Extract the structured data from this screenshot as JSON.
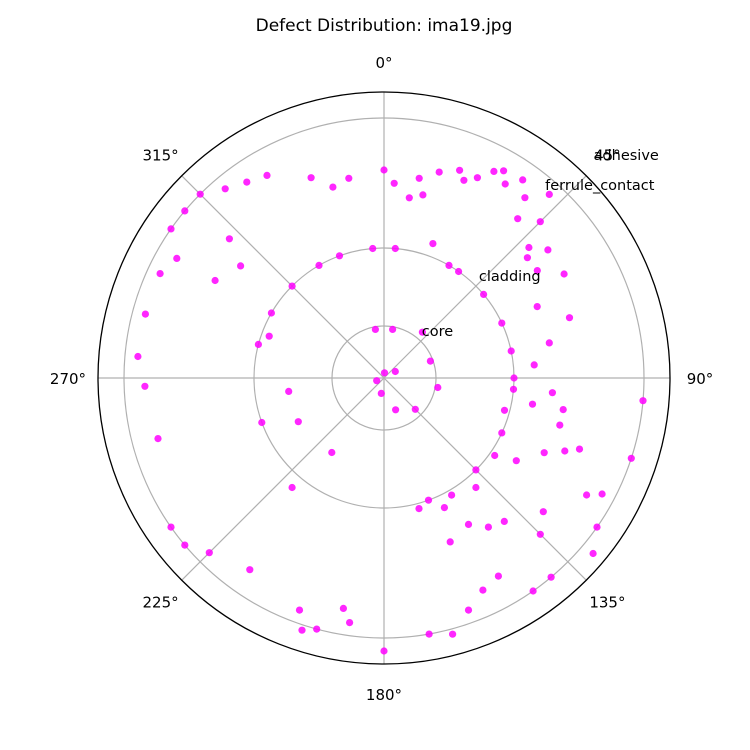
{
  "chart_data": {
    "type": "scatter",
    "title": "Defect Distribution: ima19.jpg",
    "angular_ticks": [
      "0°",
      "45°",
      "90°",
      "135°",
      "180°",
      "225°",
      "270°",
      "315°"
    ],
    "theta_zero_location": "N",
    "theta_direction": "clockwise",
    "rlim": [
      0,
      1.1
    ],
    "grid": true,
    "marker_color": "#ff00ff",
    "zones": [
      {
        "label": "core",
        "radius": 0.2
      },
      {
        "label": "cladding",
        "radius": 0.5
      },
      {
        "label": "ferrule_contact",
        "radius": 1.0
      },
      {
        "label": "adhesive",
        "radius": 1.1
      }
    ],
    "points": [
      {
        "theta_deg": 5,
        "r": 0.02
      },
      {
        "theta_deg": 60,
        "r": 0.05
      },
      {
        "theta_deg": 250,
        "r": 0.03
      },
      {
        "theta_deg": 190,
        "r": 0.06
      },
      {
        "theta_deg": 160,
        "r": 0.13
      },
      {
        "theta_deg": 135,
        "r": 0.17
      },
      {
        "theta_deg": 70,
        "r": 0.19
      },
      {
        "theta_deg": 40,
        "r": 0.23
      },
      {
        "theta_deg": 10,
        "r": 0.19
      },
      {
        "theta_deg": 350,
        "r": 0.19
      },
      {
        "theta_deg": 100,
        "r": 0.21
      },
      {
        "theta_deg": 5,
        "r": 0.5
      },
      {
        "theta_deg": 355,
        "r": 0.5
      },
      {
        "theta_deg": 340,
        "r": 0.5
      },
      {
        "theta_deg": 330,
        "r": 0.5
      },
      {
        "theta_deg": 315,
        "r": 0.5
      },
      {
        "theta_deg": 300,
        "r": 0.5
      },
      {
        "theta_deg": 290,
        "r": 0.47
      },
      {
        "theta_deg": 285,
        "r": 0.5
      },
      {
        "theta_deg": 262,
        "r": 0.37
      },
      {
        "theta_deg": 250,
        "r": 0.5
      },
      {
        "theta_deg": 243,
        "r": 0.37
      },
      {
        "theta_deg": 215,
        "r": 0.35
      },
      {
        "theta_deg": 30,
        "r": 0.5
      },
      {
        "theta_deg": 35,
        "r": 0.5
      },
      {
        "theta_deg": 20,
        "r": 0.55
      },
      {
        "theta_deg": 50,
        "r": 0.5
      },
      {
        "theta_deg": 65,
        "r": 0.5
      },
      {
        "theta_deg": 78,
        "r": 0.5
      },
      {
        "theta_deg": 90,
        "r": 0.5
      },
      {
        "theta_deg": 95,
        "r": 0.5
      },
      {
        "theta_deg": 105,
        "r": 0.48
      },
      {
        "theta_deg": 115,
        "r": 0.5
      },
      {
        "theta_deg": 125,
        "r": 0.52
      },
      {
        "theta_deg": 135,
        "r": 0.5
      },
      {
        "theta_deg": 140,
        "r": 0.55
      },
      {
        "theta_deg": 150,
        "r": 0.52
      },
      {
        "theta_deg": 155,
        "r": 0.55
      },
      {
        "theta_deg": 160,
        "r": 0.5
      },
      {
        "theta_deg": 165,
        "r": 0.52
      },
      {
        "theta_deg": 150,
        "r": 0.65
      },
      {
        "theta_deg": 15,
        "r": 0.82
      },
      {
        "theta_deg": 20,
        "r": 0.85
      },
      {
        "theta_deg": 22,
        "r": 0.82
      },
      {
        "theta_deg": 25,
        "r": 0.85
      },
      {
        "theta_deg": 28,
        "r": 0.9
      },
      {
        "theta_deg": 30,
        "r": 0.92
      },
      {
        "theta_deg": 32,
        "r": 0.88
      },
      {
        "theta_deg": 35,
        "r": 0.93
      },
      {
        "theta_deg": 38,
        "r": 0.88
      },
      {
        "theta_deg": 40,
        "r": 0.8
      },
      {
        "theta_deg": 42,
        "r": 0.95
      },
      {
        "theta_deg": 45,
        "r": 0.85
      },
      {
        "theta_deg": 48,
        "r": 0.75
      },
      {
        "theta_deg": 50,
        "r": 0.72
      },
      {
        "theta_deg": 52,
        "r": 0.8
      },
      {
        "theta_deg": 55,
        "r": 0.72
      },
      {
        "theta_deg": 60,
        "r": 0.8
      },
      {
        "theta_deg": 65,
        "r": 0.65
      },
      {
        "theta_deg": 10,
        "r": 0.78
      },
      {
        "theta_deg": 12,
        "r": 0.72
      },
      {
        "theta_deg": 8,
        "r": 0.7
      },
      {
        "theta_deg": 3,
        "r": 0.75
      },
      {
        "theta_deg": 0,
        "r": 0.8
      },
      {
        "theta_deg": 350,
        "r": 0.78
      },
      {
        "theta_deg": 345,
        "r": 0.76
      },
      {
        "theta_deg": 340,
        "r": 0.82
      },
      {
        "theta_deg": 330,
        "r": 0.9
      },
      {
        "theta_deg": 325,
        "r": 0.92
      },
      {
        "theta_deg": 320,
        "r": 0.95
      },
      {
        "theta_deg": 315,
        "r": 1.0
      },
      {
        "theta_deg": 310,
        "r": 1.0
      },
      {
        "theta_deg": 305,
        "r": 1.0
      },
      {
        "theta_deg": 300,
        "r": 0.92
      },
      {
        "theta_deg": 295,
        "r": 0.95
      },
      {
        "theta_deg": 312,
        "r": 0.8
      },
      {
        "theta_deg": 308,
        "r": 0.7
      },
      {
        "theta_deg": 300,
        "r": 0.75
      },
      {
        "theta_deg": 285,
        "r": 0.95
      },
      {
        "theta_deg": 275,
        "r": 0.95
      },
      {
        "theta_deg": 268,
        "r": 0.92
      },
      {
        "theta_deg": 255,
        "r": 0.9
      },
      {
        "theta_deg": 235,
        "r": 1.0
      },
      {
        "theta_deg": 230,
        "r": 1.0
      },
      {
        "theta_deg": 225,
        "r": 0.95
      },
      {
        "theta_deg": 220,
        "r": 0.55
      },
      {
        "theta_deg": 215,
        "r": 0.9
      },
      {
        "theta_deg": 200,
        "r": 0.95
      },
      {
        "theta_deg": 198,
        "r": 1.02
      },
      {
        "theta_deg": 195,
        "r": 1.0
      },
      {
        "theta_deg": 190,
        "r": 0.9
      },
      {
        "theta_deg": 188,
        "r": 0.95
      },
      {
        "theta_deg": 180,
        "r": 1.05
      },
      {
        "theta_deg": 170,
        "r": 1.0
      },
      {
        "theta_deg": 165,
        "r": 1.02
      },
      {
        "theta_deg": 160,
        "r": 0.95
      },
      {
        "theta_deg": 155,
        "r": 0.9
      },
      {
        "theta_deg": 150,
        "r": 0.88
      },
      {
        "theta_deg": 145,
        "r": 1.0
      },
      {
        "theta_deg": 140,
        "r": 1.0
      },
      {
        "theta_deg": 135,
        "r": 0.85
      },
      {
        "theta_deg": 130,
        "r": 1.05
      },
      {
        "theta_deg": 125,
        "r": 1.0
      },
      {
        "theta_deg": 120,
        "r": 0.9
      },
      {
        "theta_deg": 112,
        "r": 0.75
      },
      {
        "theta_deg": 105,
        "r": 0.7
      },
      {
        "theta_deg": 100,
        "r": 0.7
      },
      {
        "theta_deg": 95,
        "r": 0.65
      },
      {
        "theta_deg": 110,
        "r": 0.8
      },
      {
        "theta_deg": 115,
        "r": 0.68
      },
      {
        "theta_deg": 122,
        "r": 0.6
      },
      {
        "theta_deg": 140,
        "r": 0.72
      },
      {
        "theta_deg": 145,
        "r": 0.7
      },
      {
        "theta_deg": 158,
        "r": 0.68
      },
      {
        "theta_deg": 130,
        "r": 0.8
      },
      {
        "theta_deg": 78,
        "r": 0.65
      },
      {
        "theta_deg": 85,
        "r": 0.58
      },
      {
        "theta_deg": 100,
        "r": 0.58
      },
      {
        "theta_deg": 118,
        "r": 0.95
      },
      {
        "theta_deg": 108,
        "r": 1.0
      },
      {
        "theta_deg": 95,
        "r": 1.0
      },
      {
        "theta_deg": 72,
        "r": 0.75
      }
    ]
  }
}
